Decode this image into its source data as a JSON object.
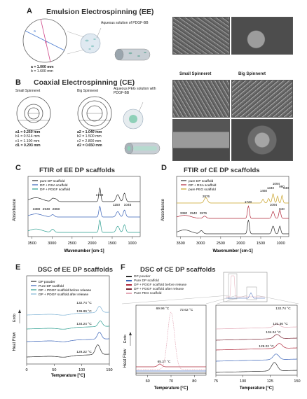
{
  "panelA": {
    "label": "A",
    "title": "Emulsion Electrospinning (EE)",
    "annot": "Aqueous solution of PDGF-BB",
    "a_label": "a",
    "b_label": "b",
    "dims": [
      "a = 1.000 mm",
      "b = 1.600 mm"
    ]
  },
  "panelB": {
    "label": "B",
    "title": "Coaxial Electrospinning (CE)",
    "annot": "Aqueous PEG solution with PDGF-BB",
    "small_label": "Small Spinneret",
    "big_label": "Big Spinneret",
    "sem_small": "Small Spinneret",
    "sem_big": "Big Spinneret",
    "small_dims": [
      "a1 = 0.260 mm",
      "b1 = 0.514 mm",
      "c1 = 1.100 mm",
      "d1 = 0.293 mm"
    ],
    "big_dims": [
      "a2 = 1.040 mm",
      "b2 = 1.500 mm",
      "c2 = 2.800 mm",
      "d2 = 0.650 mm"
    ]
  },
  "panelC": {
    "label": "C",
    "title": "FTIR of EE DP scaffolds",
    "chart_data": {
      "type": "line",
      "ylabel": "Absorbance",
      "xlabel": "Wavenumber [cm-1]",
      "xlim": [
        3600,
        800
      ],
      "xticks": [
        "3500",
        "3000",
        "2500",
        "2000",
        "1500",
        "1000"
      ],
      "series": [
        {
          "name": "pure DP scaffold",
          "color": "#2b2b2b"
        },
        {
          "name": "DP + RSA scaffold",
          "color": "#3a63b8"
        },
        {
          "name": "DP + PDGF scaffold",
          "color": "#2a9d8f"
        }
      ],
      "peaks": [
        "3380",
        "2940",
        "2860",
        "1720",
        "1150",
        "1045"
      ]
    }
  },
  "panelD": {
    "label": "D",
    "title": "FTIR of CE DP scaffolds",
    "chart_data": {
      "type": "line",
      "ylabel": "Absorbance",
      "xlabel": "Wavenumber [cm-1]",
      "xlim": [
        3600,
        800
      ],
      "xticks": [
        "3500",
        "3000",
        "2500",
        "2000",
        "1500",
        "1000"
      ],
      "series": [
        {
          "name": "pure DP scaffold",
          "color": "#2b2b2b"
        },
        {
          "name": "DP + RSA scaffold",
          "color": "#b0273a"
        },
        {
          "name": "pure PEG scaffold",
          "color": "#c9a227"
        }
      ],
      "peaks": [
        "2876",
        "1460",
        "1340",
        "1094",
        "960",
        "840",
        "3380",
        "2940",
        "2876",
        "1720",
        "1094",
        "840"
      ]
    }
  },
  "panelE": {
    "label": "E",
    "title": "DSC of EE DP scaffolds",
    "chart_data": {
      "type": "line",
      "ylabel": "Heat Flow",
      "endo": "Endo",
      "xlabel": "Temperature [°C]",
      "xlim": [
        0,
        150
      ],
      "xticks": [
        "0",
        "50",
        "100",
        "150"
      ],
      "series": [
        {
          "name": "DP powder",
          "color": "#2b2b2b"
        },
        {
          "name": "Pure DP scaffold",
          "color": "#3a63b8"
        },
        {
          "name": "DP + PDGF scaffold before release",
          "color": "#2a9d8f"
        },
        {
          "name": "DP + PDGF scaffold after release",
          "color": "#7fb3d5"
        }
      ],
      "annotations": [
        "132.74 °C",
        "136.89 °C",
        "134.24 °C",
        "129.22 °C"
      ]
    }
  },
  "panelF": {
    "label": "F",
    "title": "DSC of CE DP scaffolds",
    "series": [
      {
        "name": "DP powder",
        "color": "#2b2b2b"
      },
      {
        "name": "Pure DP scaffold",
        "color": "#3a63b8"
      },
      {
        "name": "DP + PDGF scaffold before release",
        "color": "#b0273a"
      },
      {
        "name": "DP + PDGF scaffold after release",
        "color": "#7a2433"
      },
      {
        "name": "Pure PEG scaffold",
        "color": "#e3a9b7"
      }
    ],
    "left_chart": {
      "ylabel": "Heat Flow",
      "endo": "Endo",
      "xlabel": "Temperature [°C]",
      "xlim": [
        55,
        85
      ],
      "xticks": [
        "60",
        "70",
        "80"
      ],
      "annotations": [
        "69.96 °C",
        "72.62 °C",
        "65.27 °C"
      ]
    },
    "right_chart": {
      "xlabel": "Temperature [°C]",
      "xlim": [
        75,
        150
      ],
      "xticks": [
        "75",
        "100",
        "125",
        "150"
      ],
      "annotations": [
        "132.74 °C",
        "131.36 °C",
        "134.24 °C",
        "129.22 °C"
      ]
    }
  }
}
